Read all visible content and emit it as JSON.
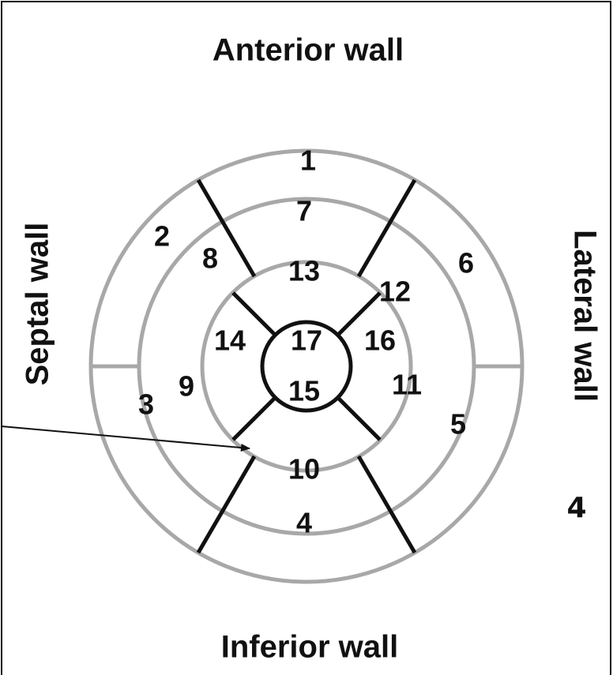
{
  "walls": {
    "anterior": "Anterior wall",
    "inferior": "Inferior wall",
    "septal": "Septal wall",
    "lateral": "Lateral wall"
  },
  "segments": [
    "1",
    "2",
    "3",
    "4",
    "5",
    "6",
    "7",
    "8",
    "9",
    "10",
    "11",
    "12",
    "13",
    "14",
    "15",
    "16",
    "17"
  ],
  "annotation": "4"
}
